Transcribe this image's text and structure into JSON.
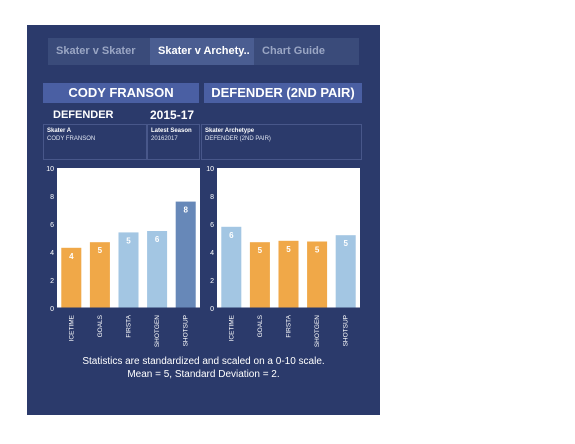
{
  "tabs": [
    {
      "label": "Skater v Skater",
      "active": false
    },
    {
      "label": "Skater v Archety..",
      "active": true
    },
    {
      "label": "Chart Guide",
      "active": false
    }
  ],
  "left": {
    "header": "CODY FRANSON",
    "position": "DEFENDER",
    "season_range": "2015-17",
    "info": [
      {
        "label": "Skater A",
        "value": "CODY FRANSON"
      },
      {
        "label": "Latest Season",
        "value": "20162017"
      }
    ]
  },
  "right": {
    "header": "DEFENDER (2ND PAIR)",
    "info": [
      {
        "label": "Skater Archetype",
        "value": "DEFENDER (2ND PAIR)"
      }
    ]
  },
  "note": {
    "line1": "Statistics are standardized and scaled on a 0-10 scale.",
    "line2": "Mean = 5, Standard Deviation = 2."
  },
  "colors": {
    "orange": "#f0a848",
    "light_blue": "#a3c6e3",
    "dark_blue": "#6788b8"
  },
  "chart_data": [
    {
      "type": "bar",
      "categories": [
        "ICETIME",
        "GOALS",
        "FIRSTA",
        "SHOTGEN",
        "SHOTSUP"
      ],
      "values": [
        4.3,
        4.7,
        5.4,
        5.5,
        7.6
      ],
      "data_labels": [
        "4",
        "5",
        "5",
        "6",
        "8"
      ],
      "bar_colors": [
        "orange",
        "orange",
        "light_blue",
        "light_blue",
        "dark_blue"
      ],
      "ylim": [
        0,
        10
      ],
      "yticks": [
        "0",
        "2",
        "4",
        "6",
        "8",
        "10"
      ],
      "grid": false
    },
    {
      "type": "bar",
      "categories": [
        "ICETIME",
        "GOALS",
        "FIRSTA",
        "SHOTGEN",
        "SHOTSUP"
      ],
      "values": [
        5.8,
        4.7,
        4.8,
        4.75,
        5.2
      ],
      "data_labels": [
        "6",
        "5",
        "5",
        "5",
        "5"
      ],
      "bar_colors": [
        "light_blue",
        "orange",
        "orange",
        "orange",
        "light_blue"
      ],
      "ylim": [
        0,
        10
      ],
      "yticks": [
        "0",
        "2",
        "4",
        "6",
        "8",
        "10"
      ],
      "grid": false
    }
  ]
}
